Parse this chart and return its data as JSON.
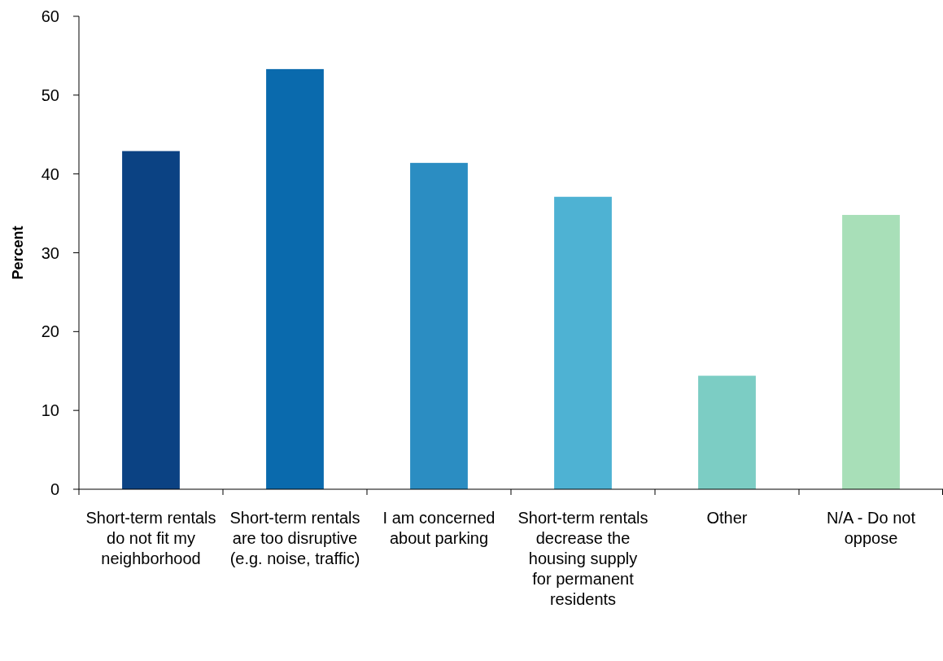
{
  "chart_data": {
    "type": "bar",
    "ylabel": "Percent",
    "categories": [
      "Short-term rentals do not fit my neighborhood",
      "Short-term rentals are too disruptive (e.g. noise, traffic)",
      "I am concerned about parking",
      "Short-term rentals decrease the housing supply for permanent residents",
      "Other",
      "N/A - Do not oppose"
    ],
    "values": [
      42.9,
      53.3,
      41.4,
      37.1,
      14.4,
      34.8
    ],
    "colors": [
      "#0b4283",
      "#0a6aad",
      "#2b8dc2",
      "#4eb2d3",
      "#7ccdc4",
      "#a8dfb8"
    ],
    "ylim": [
      0,
      60
    ],
    "yticks": [
      0,
      10,
      20,
      30,
      40,
      50,
      60
    ],
    "grid": false
  }
}
